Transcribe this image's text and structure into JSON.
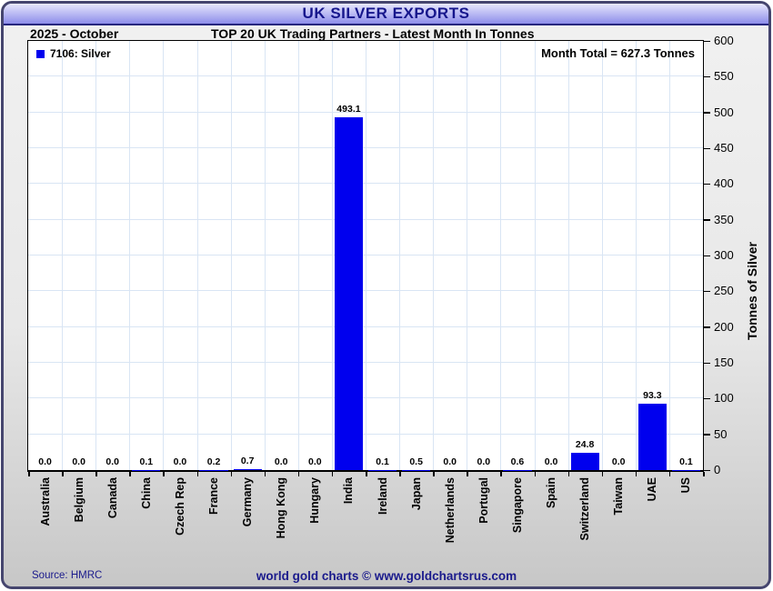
{
  "window": {
    "title": "UK SILVER EXPORTS"
  },
  "header": {
    "period": "2025 - October",
    "subtitle": "TOP 20 UK Trading Partners - Latest Month In Tonnes"
  },
  "legend": {
    "label": "7106: Silver",
    "swatch_color": "#0000ee"
  },
  "annotations": {
    "month_total": "Month Total = 627.3 Tonnes"
  },
  "chart_data": {
    "type": "bar",
    "title": "UK SILVER EXPORTS",
    "subtitle": "TOP 20 UK Trading Partners - Latest Month In Tonnes",
    "categories": [
      "Australia",
      "Belgium",
      "Canada",
      "China",
      "Czech Rep",
      "France",
      "Germany",
      "Hong Kong",
      "Hungary",
      "India",
      "Ireland",
      "Japan",
      "Netherlands",
      "Portugal",
      "Singapore",
      "Spain",
      "Switzerland",
      "Taiwan",
      "UAE",
      "US"
    ],
    "values": [
      0.0,
      0.0,
      0.0,
      0.1,
      0.0,
      0.2,
      0.7,
      0.0,
      0.0,
      493.1,
      0.1,
      0.5,
      0.0,
      0.0,
      0.6,
      0.0,
      24.8,
      0.0,
      93.3,
      0.1
    ],
    "xlabel": "",
    "ylabel": "Tonnes of Silver",
    "ylim": [
      0,
      600
    ],
    "ytick_step": 50,
    "value_label_decimals": 1,
    "bar_color": "#0000ee",
    "grid": true,
    "gridline_color": "#d9e5f4",
    "legend_position": "top-left",
    "y_axis_side": "right"
  },
  "footer": {
    "source": "Source: HMRC",
    "credit": "world gold charts © www.goldchartsrus.com"
  },
  "colors": {
    "accent_navy": "#1a1a8c",
    "titlebar_top": "#e9e9fc",
    "titlebar_bottom": "#8d8dea",
    "bar": "#0000ee",
    "grid": "#d9e5f4"
  }
}
